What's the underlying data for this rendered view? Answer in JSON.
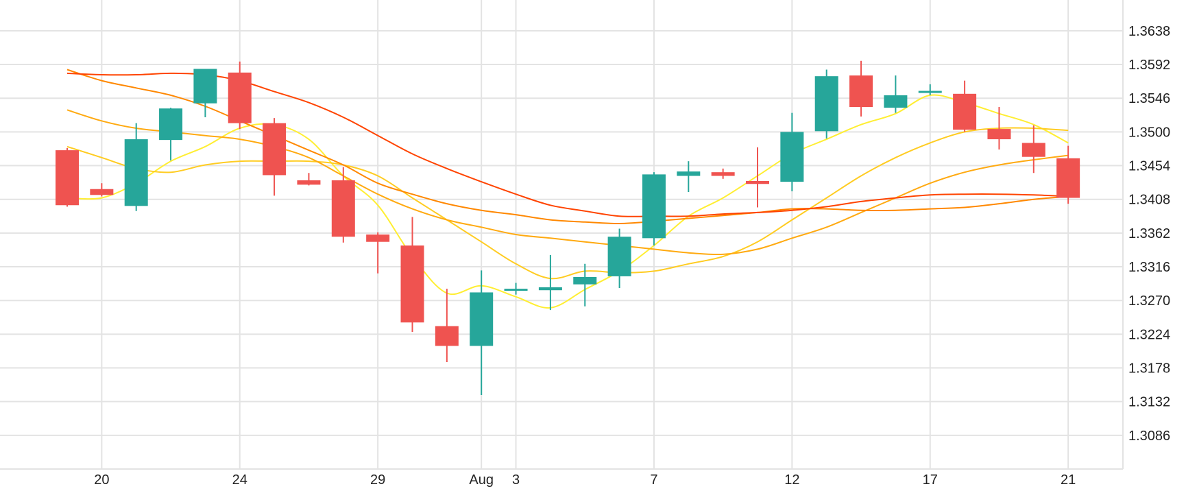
{
  "chart_data": {
    "type": "candlestick",
    "title": "",
    "xlabel": "",
    "ylabel": "",
    "ylim": [
      1.304,
      1.368
    ],
    "y_ticks": [
      "1.3638",
      "1.3592",
      "1.3546",
      "1.3500",
      "1.3454",
      "1.3408",
      "1.3362",
      "1.3316",
      "1.3270",
      "1.3224",
      "1.3178",
      "1.3132",
      "1.3086"
    ],
    "x_range": [
      0,
      30.6
    ],
    "x_ticks": [
      {
        "x": 1,
        "label": "20"
      },
      {
        "x": 5,
        "label": "24"
      },
      {
        "x": 9,
        "label": "29"
      },
      {
        "x": 12,
        "label": "Aug"
      },
      {
        "x": 13,
        "label": "3"
      },
      {
        "x": 17,
        "label": "7"
      },
      {
        "x": 21,
        "label": "12"
      },
      {
        "x": 25,
        "label": "17"
      },
      {
        "x": 29,
        "label": "21"
      }
    ],
    "colors": {
      "up": "#26a69a",
      "down": "#ef5350",
      "grid": "#e3e3e3",
      "text": "#222222"
    },
    "candles": [
      {
        "x": 0,
        "open": 1.3475,
        "high": 1.3478,
        "low": 1.3398,
        "close": 1.34
      },
      {
        "x": 1,
        "open": 1.3422,
        "high": 1.343,
        "low": 1.3412,
        "close": 1.3414
      },
      {
        "x": 2,
        "open": 1.3399,
        "high": 1.3512,
        "low": 1.3392,
        "close": 1.349
      },
      {
        "x": 3,
        "open": 1.3489,
        "high": 1.3533,
        "low": 1.3461,
        "close": 1.3532
      },
      {
        "x": 4,
        "open": 1.3539,
        "high": 1.3586,
        "low": 1.352,
        "close": 1.3586
      },
      {
        "x": 5,
        "open": 1.3581,
        "high": 1.3596,
        "low": 1.3504,
        "close": 1.3512
      },
      {
        "x": 6,
        "open": 1.3512,
        "high": 1.3519,
        "low": 1.3413,
        "close": 1.3441
      },
      {
        "x": 7,
        "open": 1.3434,
        "high": 1.3444,
        "low": 1.3427,
        "close": 1.3428
      },
      {
        "x": 8,
        "open": 1.3434,
        "high": 1.3452,
        "low": 1.3349,
        "close": 1.3357
      },
      {
        "x": 9,
        "open": 1.336,
        "high": 1.3363,
        "low": 1.3307,
        "close": 1.335
      },
      {
        "x": 10,
        "open": 1.3345,
        "high": 1.3384,
        "low": 1.3227,
        "close": 1.324
      },
      {
        "x": 11,
        "open": 1.3235,
        "high": 1.3286,
        "low": 1.3186,
        "close": 1.3208
      },
      {
        "x": 12,
        "open": 1.3208,
        "high": 1.3311,
        "low": 1.3141,
        "close": 1.3281
      },
      {
        "x": 13,
        "open": 1.3284,
        "high": 1.3294,
        "low": 1.3278,
        "close": 1.3286
      },
      {
        "x": 14,
        "open": 1.3284,
        "high": 1.3332,
        "low": 1.3257,
        "close": 1.3288
      },
      {
        "x": 15,
        "open": 1.3292,
        "high": 1.332,
        "low": 1.3262,
        "close": 1.3302
      },
      {
        "x": 16,
        "open": 1.3303,
        "high": 1.3368,
        "low": 1.3287,
        "close": 1.3357
      },
      {
        "x": 17,
        "open": 1.3355,
        "high": 1.3445,
        "low": 1.3345,
        "close": 1.3442
      },
      {
        "x": 18,
        "open": 1.344,
        "high": 1.346,
        "low": 1.3418,
        "close": 1.3446
      },
      {
        "x": 19,
        "open": 1.3445,
        "high": 1.345,
        "low": 1.3436,
        "close": 1.344
      },
      {
        "x": 20,
        "open": 1.3433,
        "high": 1.3479,
        "low": 1.3397,
        "close": 1.3429
      },
      {
        "x": 21,
        "open": 1.3432,
        "high": 1.3526,
        "low": 1.3419,
        "close": 1.35
      },
      {
        "x": 22,
        "open": 1.3501,
        "high": 1.3585,
        "low": 1.3491,
        "close": 1.3576
      },
      {
        "x": 23,
        "open": 1.3577,
        "high": 1.3597,
        "low": 1.3521,
        "close": 1.3534
      },
      {
        "x": 24,
        "open": 1.3533,
        "high": 1.3577,
        "low": 1.3526,
        "close": 1.355
      },
      {
        "x": 25,
        "open": 1.3555,
        "high": 1.3565,
        "low": 1.355,
        "close": 1.3556
      },
      {
        "x": 26,
        "open": 1.3552,
        "high": 1.357,
        "low": 1.35,
        "close": 1.3503
      },
      {
        "x": 27,
        "open": 1.3504,
        "high": 1.3534,
        "low": 1.3476,
        "close": 1.349
      },
      {
        "x": 28,
        "open": 1.3485,
        "high": 1.3509,
        "low": 1.3444,
        "close": 1.3466
      },
      {
        "x": 29,
        "open": 1.3464,
        "high": 1.3481,
        "low": 1.3402,
        "close": 1.341
      }
    ],
    "series": [
      {
        "color": "#ffee33",
        "values": [
          1.341,
          1.341,
          1.343,
          1.346,
          1.348,
          1.3505,
          1.351,
          1.349,
          1.344,
          1.34,
          1.333,
          1.328,
          1.329,
          1.3275,
          1.326,
          1.3285,
          1.331,
          1.3345,
          1.3385,
          1.341,
          1.344,
          1.347,
          1.349,
          1.351,
          1.3525,
          1.355,
          1.354,
          1.3525,
          1.351,
          1.3485
        ]
      },
      {
        "color": "#ffcc22",
        "values": [
          1.348,
          1.3465,
          1.345,
          1.3445,
          1.3455,
          1.346,
          1.346,
          1.346,
          1.3455,
          1.344,
          1.341,
          1.338,
          1.335,
          1.332,
          1.33,
          1.331,
          1.3308,
          1.331,
          1.332,
          1.333,
          1.335,
          1.338,
          1.341,
          1.344,
          1.3465,
          1.3485,
          1.35,
          1.3505,
          1.3505,
          1.3502
        ]
      },
      {
        "color": "#ffaa11",
        "values": [
          1.353,
          1.3515,
          1.3505,
          1.35,
          1.3495,
          1.349,
          1.348,
          1.3465,
          1.344,
          1.3415,
          1.3395,
          1.338,
          1.337,
          1.336,
          1.3355,
          1.335,
          1.3345,
          1.334,
          1.3335,
          1.3333,
          1.334,
          1.3355,
          1.337,
          1.339,
          1.341,
          1.343,
          1.3445,
          1.3455,
          1.3462,
          1.3468
        ]
      },
      {
        "color": "#ff8800",
        "values": [
          1.3585,
          1.357,
          1.356,
          1.355,
          1.3535,
          1.3515,
          1.3495,
          1.3475,
          1.3455,
          1.343,
          1.3415,
          1.3402,
          1.3393,
          1.3387,
          1.338,
          1.3377,
          1.3375,
          1.3378,
          1.3382,
          1.3386,
          1.339,
          1.3395,
          1.3395,
          1.3393,
          1.3393,
          1.3395,
          1.3397,
          1.3402,
          1.3408,
          1.3412
        ]
      },
      {
        "color": "#ff4400",
        "values": [
          1.358,
          1.3578,
          1.3578,
          1.358,
          1.3578,
          1.357,
          1.3555,
          1.354,
          1.352,
          1.3495,
          1.347,
          1.345,
          1.3432,
          1.3415,
          1.34,
          1.3392,
          1.3385,
          1.3385,
          1.3385,
          1.3388,
          1.339,
          1.3393,
          1.3398,
          1.3405,
          1.341,
          1.3414,
          1.3415,
          1.3415,
          1.3414,
          1.3412
        ]
      }
    ]
  }
}
